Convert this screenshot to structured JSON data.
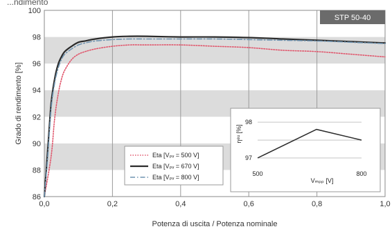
{
  "top_title": "...ndimento",
  "chart_data": {
    "type": "line",
    "badge": "STP 50-40",
    "xlabel": "Potenza di uscita / Potenza nominale",
    "ylabel": "Grado di rendimento [%]",
    "xlim": [
      0,
      1
    ],
    "ylim": [
      86,
      100
    ],
    "xticks": [
      0,
      0.2,
      0.4,
      0.6,
      0.8,
      1.0
    ],
    "xtick_labels": [
      "0,0",
      "0,2",
      "0,4",
      "0,6",
      "0,8",
      "1,0"
    ],
    "yticks": [
      86,
      88,
      90,
      92,
      94,
      96,
      98,
      100
    ],
    "ytick_labels": [
      "86",
      "88",
      "90",
      "92",
      "94",
      "96",
      "98",
      "100"
    ],
    "grid": "vertical lines, alternating horizontal bands",
    "legend_position": "bottom-center",
    "series": [
      {
        "name": "Eta [Vₚᵥ = 500 V]",
        "color": "#e0556b",
        "style": "dotted",
        "x": [
          0.0,
          0.02,
          0.03,
          0.04,
          0.05,
          0.06,
          0.08,
          0.1,
          0.12,
          0.15,
          0.2,
          0.25,
          0.3,
          0.4,
          0.5,
          0.6,
          0.7,
          0.8,
          0.9,
          1.0
        ],
        "y": [
          86.0,
          89.0,
          91.8,
          93.6,
          94.8,
          95.5,
          96.3,
          96.7,
          96.9,
          97.1,
          97.3,
          97.4,
          97.4,
          97.4,
          97.3,
          97.2,
          97.0,
          96.9,
          96.7,
          96.5
        ]
      },
      {
        "name": "Eta [Vₚᵥ = 670 V]",
        "color": "#2b2b2b",
        "style": "solid",
        "x": [
          0.0,
          0.01,
          0.02,
          0.03,
          0.04,
          0.05,
          0.06,
          0.08,
          0.1,
          0.12,
          0.15,
          0.2,
          0.25,
          0.3,
          0.4,
          0.5,
          0.6,
          0.7,
          0.8,
          0.9,
          1.0
        ],
        "y": [
          86.0,
          89.5,
          93.0,
          94.8,
          95.9,
          96.5,
          96.9,
          97.3,
          97.6,
          97.7,
          97.85,
          98.0,
          98.05,
          98.05,
          98.0,
          98.0,
          97.95,
          97.85,
          97.75,
          97.65,
          97.55
        ]
      },
      {
        "name": "Eta [Vₚᵥ = 800 V]",
        "color": "#6f93b0",
        "style": "dashdot",
        "x": [
          0.0,
          0.01,
          0.02,
          0.03,
          0.04,
          0.05,
          0.06,
          0.08,
          0.1,
          0.12,
          0.15,
          0.2,
          0.25,
          0.3,
          0.4,
          0.5,
          0.6,
          0.7,
          0.8,
          0.9,
          1.0
        ],
        "y": [
          86.0,
          89.0,
          92.6,
          94.5,
          95.6,
          96.3,
          96.7,
          97.1,
          97.4,
          97.55,
          97.7,
          97.8,
          97.85,
          97.85,
          97.85,
          97.85,
          97.8,
          97.75,
          97.7,
          97.6,
          97.5
        ]
      }
    ],
    "inset": {
      "ylabel": "ηᵉᵘ [%]",
      "xlabel": "Vₘₚₚ [V]",
      "xlim": [
        500,
        800
      ],
      "ylim": [
        96.75,
        98.1
      ],
      "xtick_labels": [
        "500",
        "800"
      ],
      "yticks": [
        97,
        98
      ],
      "ytick_labels": [
        "97",
        "98"
      ],
      "x": [
        500,
        670,
        800
      ],
      "y": [
        97.0,
        97.8,
        97.5
      ]
    }
  }
}
